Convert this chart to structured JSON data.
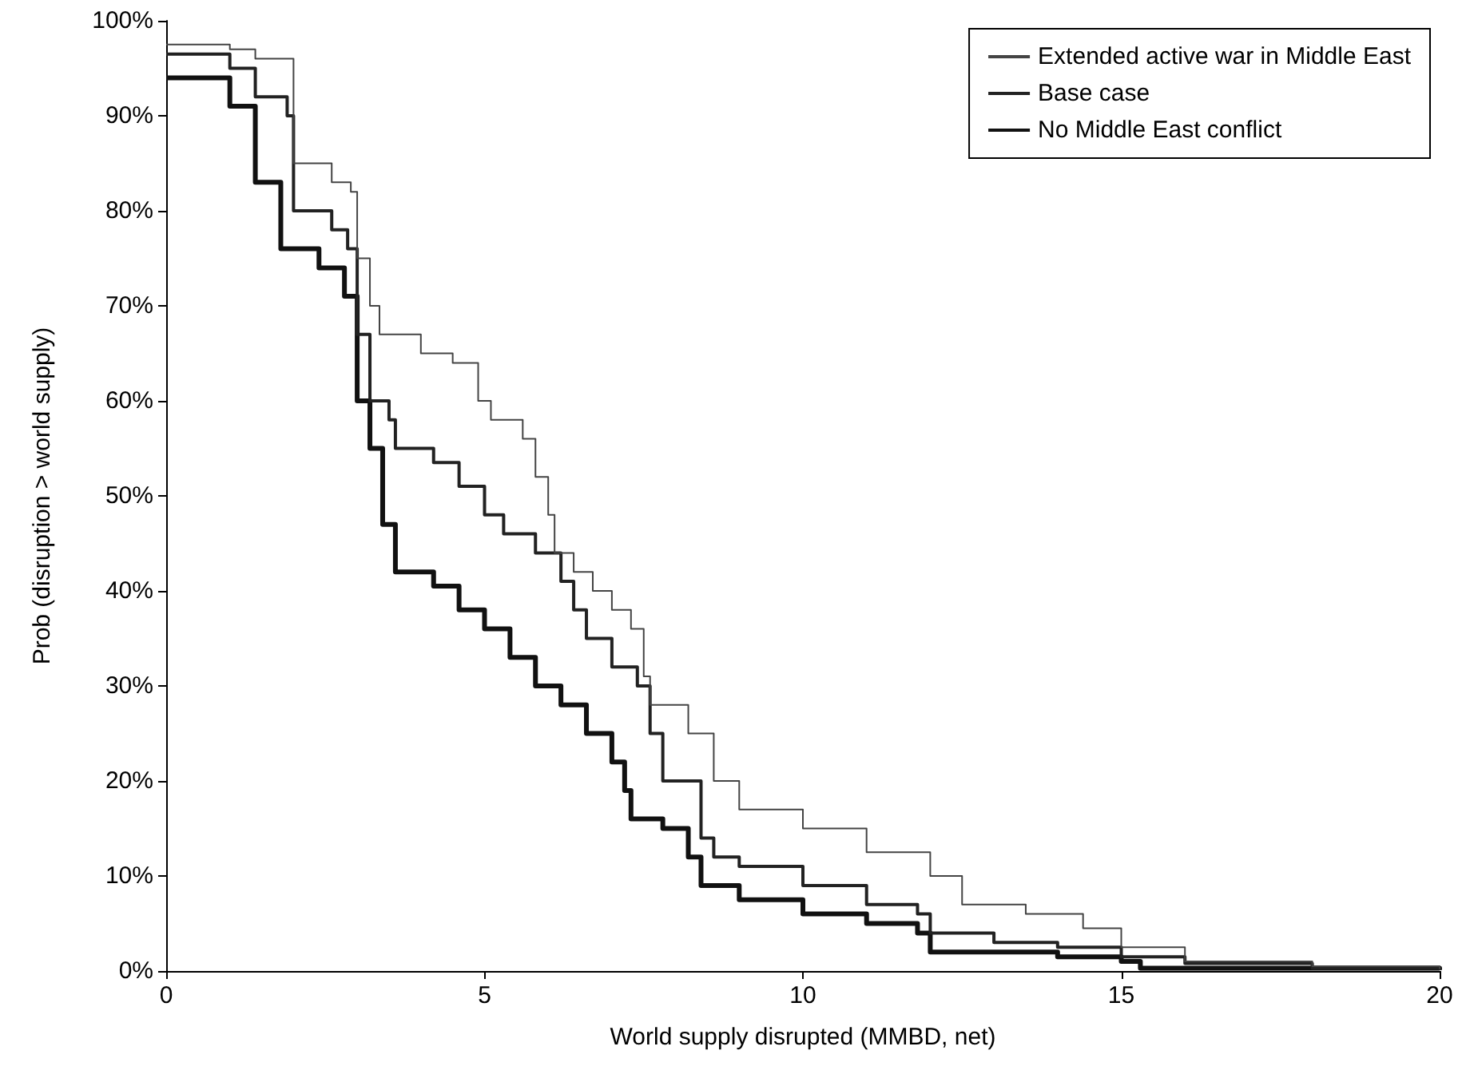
{
  "chart_data": {
    "type": "step",
    "xlabel": "World supply disrupted (MMBD, net)",
    "ylabel": "Prob (disruption > world supply)",
    "xlim": [
      0,
      20
    ],
    "xticks": [
      0,
      5,
      10,
      15,
      20
    ],
    "ylim": [
      0,
      100
    ],
    "yticks": [
      {
        "value": 0,
        "label": "0%"
      },
      {
        "value": 10,
        "label": "10%"
      },
      {
        "value": 20,
        "label": "20%"
      },
      {
        "value": 30,
        "label": "30%"
      },
      {
        "value": 40,
        "label": "40%"
      },
      {
        "value": 50,
        "label": "50%"
      },
      {
        "value": 60,
        "label": "60%"
      },
      {
        "value": 70,
        "label": "70%"
      },
      {
        "value": 80,
        "label": "80%"
      },
      {
        "value": 90,
        "label": "90%"
      },
      {
        "value": 100,
        "label": "100%"
      }
    ],
    "grid": false,
    "legend": "top right",
    "marker": "none",
    "line_style": "solid",
    "series": [
      {
        "name": "Extended active war in Middle East",
        "color": "#444444",
        "x": [
          0,
          1,
          1.4,
          2,
          2.6,
          2.9,
          3,
          3.2,
          3.35,
          4,
          4.5,
          4.9,
          5.1,
          5.6,
          5.8,
          6,
          6.1,
          6.4,
          6.7,
          7,
          7.3,
          7.5,
          7.6,
          8.2,
          8.6,
          9,
          10,
          11,
          12,
          12.5,
          13.5,
          14.4,
          15,
          16,
          18,
          20
        ],
        "values": [
          97.5,
          97,
          96,
          85,
          83,
          82,
          75,
          70,
          67,
          65,
          64,
          60,
          58,
          56,
          52,
          48,
          44,
          42,
          40,
          38,
          36,
          31,
          28,
          25,
          20,
          17,
          15,
          12.5,
          10,
          7,
          6,
          4.5,
          2.5,
          1,
          0.5,
          0.2
        ]
      },
      {
        "name": "Base case",
        "color": "#222222",
        "x": [
          0,
          1,
          1.4,
          1.9,
          2,
          2.6,
          2.85,
          3,
          3.2,
          3.5,
          3.6,
          4.2,
          4.6,
          5,
          5.3,
          5.8,
          6.2,
          6.4,
          6.6,
          7,
          7.4,
          7.6,
          7.8,
          8.4,
          8.6,
          9,
          10,
          11,
          11.8,
          12,
          13,
          14,
          15,
          16,
          18,
          20
        ],
        "values": [
          96.5,
          95,
          92,
          90,
          80,
          78,
          76,
          67,
          60,
          58,
          55,
          53.5,
          51,
          48,
          46,
          44,
          41,
          38,
          35,
          32,
          30,
          25,
          20,
          14,
          12,
          11,
          9,
          7,
          6,
          4,
          3,
          2.5,
          1.5,
          0.8,
          0.3,
          0.1
        ]
      },
      {
        "name": "No Middle East conflict",
        "color": "#111111",
        "x": [
          0,
          1,
          1.4,
          1.8,
          2.4,
          2.8,
          3,
          3.2,
          3.4,
          3.6,
          4.2,
          4.6,
          5,
          5.4,
          5.8,
          6.2,
          6.6,
          7,
          7.2,
          7.3,
          7.8,
          8.2,
          8.4,
          9,
          10,
          11,
          11.8,
          12,
          14,
          15,
          15.3,
          20
        ],
        "values": [
          94,
          91,
          83,
          76,
          74,
          71,
          60,
          55,
          47,
          42,
          40.5,
          38,
          36,
          33,
          30,
          28,
          25,
          22,
          19,
          16,
          15,
          12,
          9,
          7.5,
          6,
          5,
          4,
          2,
          1.5,
          1,
          0.3,
          0.1
        ]
      }
    ]
  }
}
